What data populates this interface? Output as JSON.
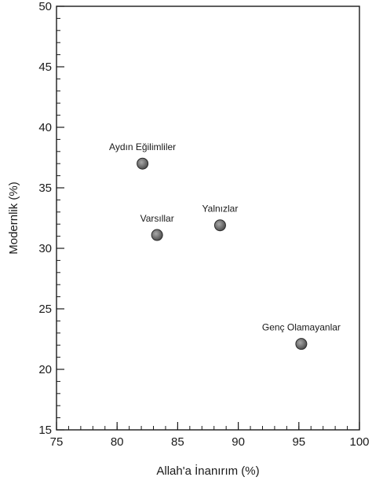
{
  "chart_data": {
    "type": "scatter",
    "title": "",
    "xlabel": "Allah'a İnanırım (%)",
    "ylabel": "Modernlik (%)",
    "xlim": [
      75,
      100
    ],
    "ylim": [
      15,
      50
    ],
    "x_ticks": [
      75,
      80,
      85,
      90,
      95,
      100
    ],
    "y_ticks": [
      15,
      20,
      25,
      30,
      35,
      40,
      45,
      50
    ],
    "x_minor_step": 1,
    "y_minor_step": 1,
    "grid": false,
    "points": [
      {
        "label": "Aydın Eğilimliler",
        "x": 82.1,
        "y": 37.0
      },
      {
        "label": "Varsıllar",
        "x": 83.3,
        "y": 31.1
      },
      {
        "label": "Yalnızlar",
        "x": 88.5,
        "y": 31.9
      },
      {
        "label": "Genç Olamayanlar",
        "x": 95.2,
        "y": 22.1
      }
    ],
    "marker_color": "#666666",
    "axis_color": "#1a1a1a"
  }
}
